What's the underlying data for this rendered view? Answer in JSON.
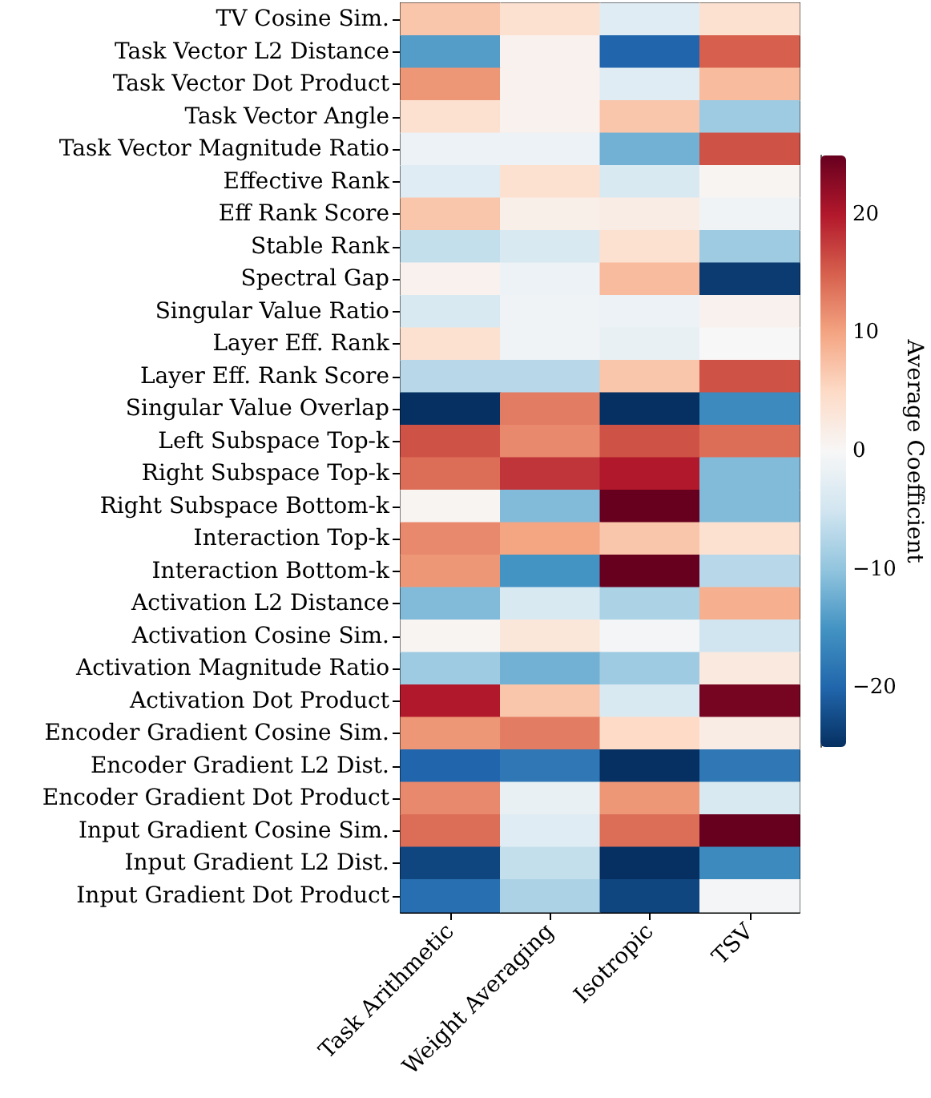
{
  "chart_data": {
    "type": "heatmap",
    "categories": [
      "Task Arithmetic",
      "Weight Averaging",
      "Isotropic",
      "TSV"
    ],
    "y_categories": [
      "TV Cosine Sim.",
      "Task Vector L2 Distance",
      "Task Vector Dot Product",
      "Task Vector Angle",
      "Task Vector Magnitude Ratio",
      "Effective Rank",
      "Eff Rank Score",
      "Stable Rank",
      "Spectral Gap",
      "Singular Value Ratio",
      "Layer Eff. Rank",
      "Layer Eff. Rank Score",
      "Singular Value Overlap",
      "Left Subspace Top-k",
      "Right Subspace Top-k",
      "Right Subspace Bottom-k",
      "Interaction Top-k",
      "Interaction Bottom-k",
      "Activation L2 Distance",
      "Activation Cosine Sim.",
      "Activation Magnitude Ratio",
      "Activation Dot Product",
      "Encoder Gradient Cosine Sim.",
      "Encoder Gradient L2 Dist.",
      "Encoder Gradient Dot Product",
      "Input Gradient Cosine Sim.",
      "Input Gradient L2 Dist.",
      "Input Gradient Dot Product"
    ],
    "cells": [
      [
        7,
        4,
        -3,
        4
      ],
      [
        -14,
        1,
        -20,
        15
      ],
      [
        11,
        1,
        -3,
        8
      ],
      [
        4,
        1,
        7,
        -9
      ],
      [
        -1.5,
        -1.5,
        -12,
        16
      ],
      [
        -3,
        4,
        -4,
        0.5
      ],
      [
        7,
        1.5,
        2,
        -1
      ],
      [
        -6,
        -4,
        4,
        -9
      ],
      [
        1,
        -1.5,
        8,
        -24
      ],
      [
        -4,
        -1,
        -1.5,
        1
      ],
      [
        4,
        -1,
        -2,
        0
      ],
      [
        -7,
        -7,
        7,
        16
      ],
      [
        -25,
        13,
        -25,
        -16
      ],
      [
        16,
        12,
        16,
        14
      ],
      [
        14,
        18,
        20,
        -11
      ],
      [
        0.5,
        -11,
        25,
        -11
      ],
      [
        12,
        10,
        7,
        4
      ],
      [
        11,
        -15,
        25,
        -7
      ],
      [
        -11,
        -4,
        -8,
        9
      ],
      [
        0.5,
        3,
        -0.5,
        -5
      ],
      [
        -9,
        -12,
        -9,
        2.5
      ],
      [
        20,
        7,
        -4,
        24
      ],
      [
        11,
        13,
        5,
        2
      ],
      [
        -20,
        -18,
        -25,
        -18
      ],
      [
        12,
        -2,
        11,
        -4
      ],
      [
        14,
        -3,
        14,
        25
      ],
      [
        -23,
        -6,
        -25,
        -16
      ],
      [
        -19,
        -8,
        -23,
        -0.5
      ]
    ],
    "clim": [
      -25,
      25
    ],
    "cticks": [
      -20,
      -10,
      0,
      10,
      20
    ],
    "clabel": "Average Coefficient"
  }
}
